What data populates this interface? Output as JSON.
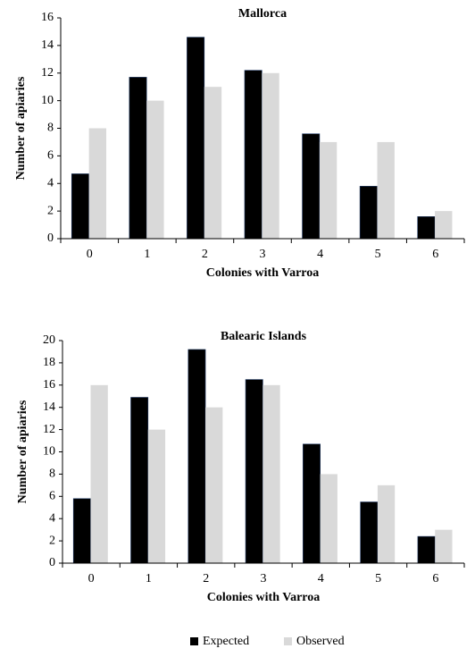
{
  "chart_data": [
    {
      "type": "bar",
      "title": "Mallorca",
      "x_label": "Colonies with Varroa",
      "y_label": "Number of apiaries",
      "categories": [
        "0",
        "1",
        "2",
        "3",
        "4",
        "5",
        "6"
      ],
      "series": [
        {
          "name": "Expected",
          "color": "#000000",
          "values": [
            4.7,
            11.7,
            14.6,
            12.2,
            7.6,
            3.8,
            1.6
          ]
        },
        {
          "name": "Observed",
          "color": "#d9d9d9",
          "values": [
            8,
            10,
            11,
            12,
            7,
            7,
            2
          ]
        }
      ],
      "ylim": [
        0,
        16
      ],
      "yticks": [
        0,
        2,
        4,
        6,
        8,
        10,
        12,
        14,
        16
      ]
    },
    {
      "type": "bar",
      "title": "Balearic Islands",
      "x_label": "Colonies with Varroa",
      "y_label": "Number of apiaries",
      "categories": [
        "0",
        "1",
        "2",
        "3",
        "4",
        "5",
        "6"
      ],
      "series": [
        {
          "name": "Expected",
          "color": "#000000",
          "values": [
            5.8,
            14.9,
            19.2,
            16.5,
            10.7,
            5.5,
            2.4
          ]
        },
        {
          "name": "Observed",
          "color": "#d9d9d9",
          "values": [
            16,
            12,
            14,
            16,
            8,
            7,
            3
          ]
        }
      ],
      "ylim": [
        0,
        20
      ],
      "yticks": [
        0,
        2,
        4,
        6,
        8,
        10,
        12,
        14,
        16,
        18,
        20
      ]
    }
  ]
}
